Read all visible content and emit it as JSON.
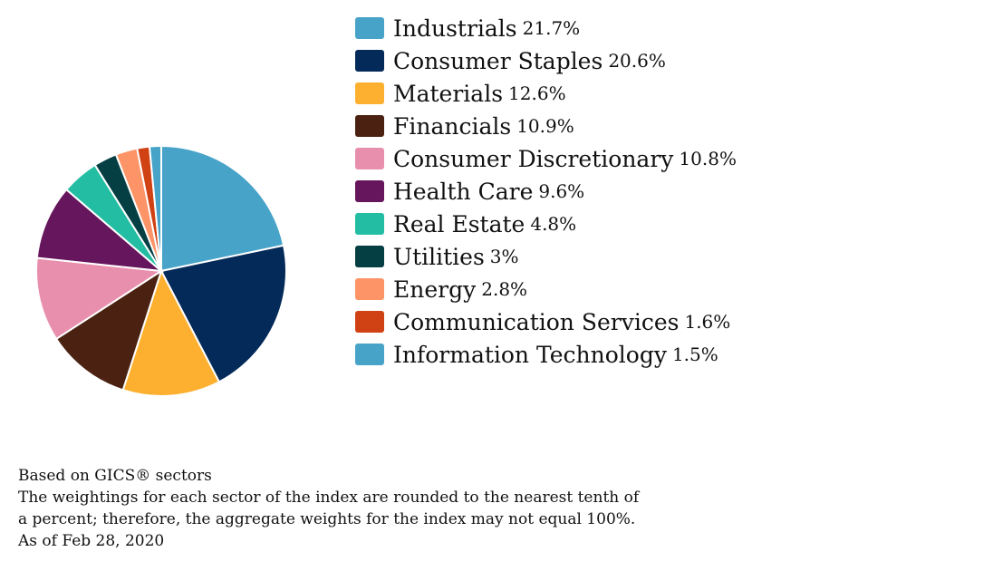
{
  "chart_data": {
    "type": "pie",
    "legend_position": "right",
    "slices": [
      {
        "label": "Industrials",
        "value": 21.7,
        "value_label": "21.7%",
        "color": "#48a3c9"
      },
      {
        "label": "Consumer Staples",
        "value": 20.6,
        "value_label": "20.6%",
        "color": "#042a59"
      },
      {
        "label": "Materials",
        "value": 12.6,
        "value_label": "12.6%",
        "color": "#fdb030"
      },
      {
        "label": "Financials",
        "value": 10.9,
        "value_label": "10.9%",
        "color": "#4b2212"
      },
      {
        "label": "Consumer Discretionary",
        "value": 10.8,
        "value_label": "10.8%",
        "color": "#e98fae"
      },
      {
        "label": "Health Care",
        "value": 9.6,
        "value_label": "9.6%",
        "color": "#66165c"
      },
      {
        "label": "Real Estate",
        "value": 4.8,
        "value_label": "4.8%",
        "color": "#22bda2"
      },
      {
        "label": "Utilities",
        "value": 3,
        "value_label": "3%",
        "color": "#053f44"
      },
      {
        "label": "Energy",
        "value": 2.8,
        "value_label": "2.8%",
        "color": "#fc9467"
      },
      {
        "label": "Communication Services",
        "value": 1.6,
        "value_label": "1.6%",
        "color": "#d04214"
      },
      {
        "label": "Information Technology",
        "value": 1.5,
        "value_label": "1.5%",
        "color": "#48a3c9"
      }
    ]
  },
  "notes": [
    "Based on GICS® sectors",
    "The weightings for each sector of the index are rounded to the nearest tenth of",
    "a percent; therefore, the aggregate weights for the index may not equal 100%.",
    "As of Feb 28, 2020"
  ]
}
